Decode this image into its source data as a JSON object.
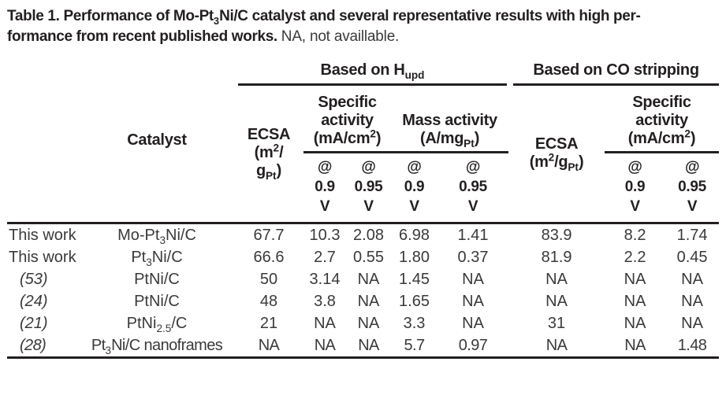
{
  "caption": {
    "bold": "Table 1. Performance of Mo-Pt~3~Ni/C catalyst and several representative results with high per-\nformance from recent published works.",
    "note": "NA, not availlable."
  },
  "header": {
    "catalyst": "Catalyst",
    "group_hupd": "Based on H~upd~",
    "group_co": "Based on CO stripping",
    "ecsa_hupd": "ECSA\n(m^2^/\ng~Pt~)",
    "specific_activity_hupd": "Specific\nactivity\n(mA/cm^2^)",
    "mass_activity": "Mass activity\n(A/mg~Pt~)",
    "ecsa_co": "ECSA\n(m^2^/g~Pt~)",
    "specific_activity_co": "Specific\nactivity\n(mA/cm^2^)",
    "at_09": "@\n0.9\nV",
    "at_095": "@\n0.95\nV"
  },
  "rows": [
    {
      "source": "This work",
      "catalyst": "Mo-Pt~3~Ni/C",
      "values": [
        "67.7",
        "10.3",
        "2.08",
        "6.98",
        "1.41",
        "83.9",
        "8.2",
        "1.74"
      ]
    },
    {
      "source": "This work",
      "catalyst": "Pt~3~Ni/C",
      "values": [
        "66.6",
        "2.7",
        "0.55",
        "1.80",
        "0.37",
        "81.9",
        "2.2",
        "0.45"
      ]
    },
    {
      "source": "(53)",
      "catalyst": "PtNi/C",
      "values": [
        "50",
        "3.14",
        "NA",
        "1.45",
        "NA",
        "NA",
        "NA",
        "NA"
      ]
    },
    {
      "source": "(24)",
      "catalyst": "PtNi/C",
      "values": [
        "48",
        "3.8",
        "NA",
        "1.65",
        "NA",
        "NA",
        "NA",
        "NA"
      ]
    },
    {
      "source": "(21)",
      "catalyst": "PtNi~2.5~/C",
      "values": [
        "21",
        "NA",
        "NA",
        "3.3",
        "NA",
        "31",
        "NA",
        "NA"
      ]
    },
    {
      "source": "(28)",
      "catalyst": "Pt~3~Ni/C nanoframes",
      "values": [
        "NA",
        "NA",
        "NA",
        "5.7",
        "0.97",
        "NA",
        "NA",
        "1.48"
      ]
    }
  ]
}
